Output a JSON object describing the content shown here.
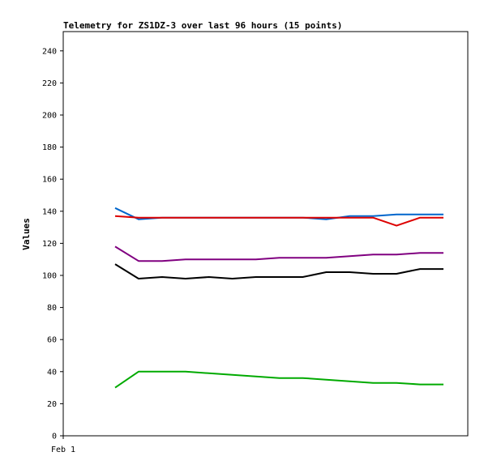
{
  "chart_data": {
    "type": "line",
    "title": "Telemetry for ZS1DZ-3 over last 96 hours (15 points)",
    "xlabel": "",
    "ylabel": "Values",
    "x_tick_labels": [
      "Feb 1"
    ],
    "ylim": [
      0,
      250
    ],
    "y_ticks": [
      0,
      20,
      40,
      60,
      80,
      100,
      120,
      140,
      160,
      180,
      200,
      220,
      240
    ],
    "grid": false,
    "legend": "none",
    "x": [
      0,
      1,
      2,
      3,
      4,
      5,
      6,
      7,
      8,
      9,
      10,
      11,
      12,
      13,
      14
    ],
    "series": [
      {
        "color": "#0066cc",
        "values": [
          142,
          135,
          136,
          136,
          136,
          136,
          136,
          136,
          136,
          135,
          137,
          137,
          138,
          138,
          138
        ]
      },
      {
        "color": "#dd0000",
        "values": [
          137,
          136,
          136,
          136,
          136,
          136,
          136,
          136,
          136,
          136,
          136,
          136,
          131,
          136,
          136
        ]
      },
      {
        "color": "#800080",
        "values": [
          118,
          109,
          109,
          110,
          110,
          110,
          110,
          111,
          111,
          111,
          112,
          113,
          113,
          114,
          114
        ]
      },
      {
        "color": "#000000",
        "values": [
          107,
          98,
          99,
          98,
          99,
          98,
          99,
          99,
          99,
          102,
          102,
          101,
          101,
          104,
          104
        ]
      },
      {
        "color": "#00aa00",
        "values": [
          30,
          40,
          40,
          40,
          39,
          38,
          37,
          36,
          36,
          35,
          34,
          33,
          33,
          32,
          32
        ]
      }
    ]
  }
}
